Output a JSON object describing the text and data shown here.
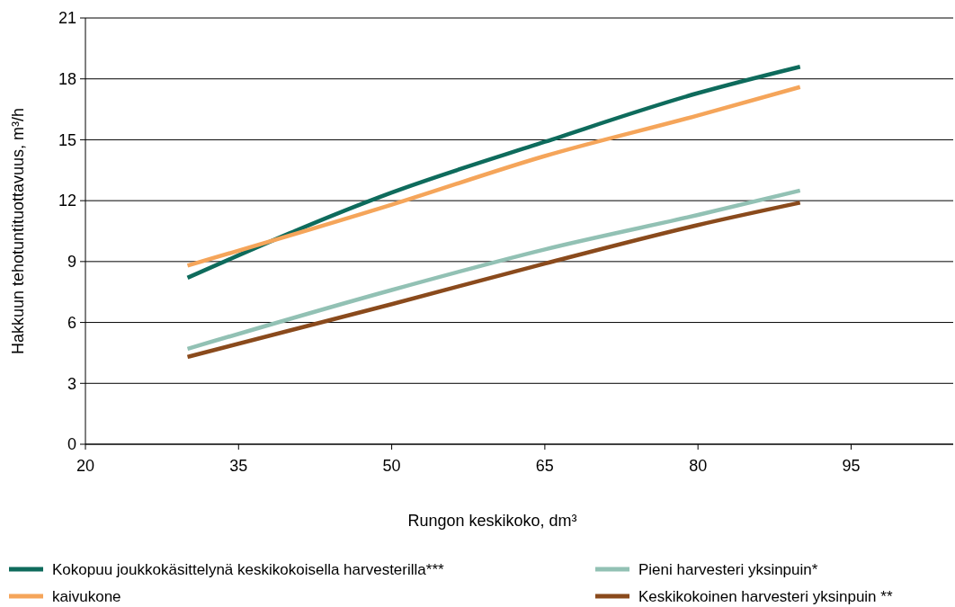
{
  "chart_data": {
    "type": "line",
    "xlabel": "Rungon keskikoko, dm³",
    "ylabel": "Hakkuun tehotuntituottavuus, m³/h",
    "x": [
      30,
      50,
      65,
      80,
      90
    ],
    "series": [
      {
        "name": "Kokopuu joukkokäsittelynä keskikokoisella harvesterilla***",
        "color": "#0e6b5c",
        "values": [
          8.2,
          12.4,
          14.9,
          17.3,
          18.6
        ]
      },
      {
        "name": "kaivukone",
        "color": "#f5a55a",
        "values": [
          8.8,
          11.8,
          14.2,
          16.2,
          17.6
        ]
      },
      {
        "name": "Pieni harvesteri yksinpuin*",
        "color": "#92c1b4",
        "values": [
          4.7,
          7.6,
          9.6,
          11.3,
          12.5
        ]
      },
      {
        "name": "Keskikokoinen harvesteri yksinpuin **",
        "color": "#8a4a1c",
        "values": [
          4.3,
          6.9,
          8.9,
          10.8,
          11.9
        ]
      }
    ],
    "xlim": [
      20,
      105
    ],
    "xticks": [
      20,
      35,
      50,
      65,
      80,
      95
    ],
    "ylim": [
      0,
      21
    ],
    "yticks": [
      0,
      3,
      6,
      9,
      12,
      15,
      18,
      21
    ],
    "grid": "y",
    "legend": "bottom",
    "marker": "none",
    "line_style": "solid"
  }
}
